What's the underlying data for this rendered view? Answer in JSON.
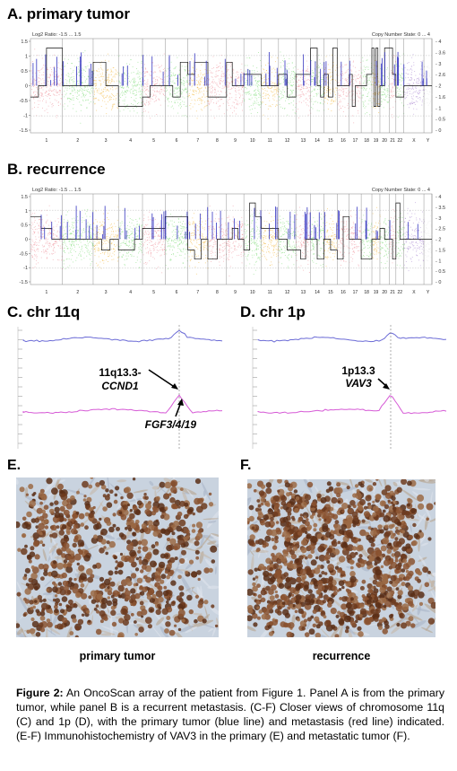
{
  "panelA": {
    "label": "A. primary tumor",
    "header_left": "Log2 Ratio: -1.5 ... 1.5",
    "header_right": "Copy Number State: 0 ... 4",
    "left_ticks": [
      "1.5",
      "1",
      "0.5",
      "0",
      "-0.5",
      "-1",
      "-1.5"
    ],
    "right_ticks": [
      "4",
      "3.6",
      "3",
      "2.6",
      "2",
      "1.6",
      "1",
      "0.5",
      "0"
    ],
    "chromosomes": [
      "1",
      "2",
      "3",
      "4",
      "5",
      "6",
      "7",
      "8",
      "9",
      "10",
      "11",
      "12",
      "13",
      "14",
      "15",
      "16",
      "17",
      "18",
      "19",
      "20",
      "21",
      "22",
      "X",
      "Y"
    ]
  },
  "panelB": {
    "label": "B. recurrence",
    "header_left": "Log2 Ratio: -1.5 ... 1.5",
    "header_right": "Copy Number State: 0 ... 4",
    "left_ticks": [
      "1.5",
      "1",
      "0.5",
      "0",
      "-0.5",
      "-1",
      "-1.5"
    ],
    "right_ticks": [
      "4",
      "3.5",
      "3",
      "2.5",
      "2",
      "1.5",
      "1",
      "0.5",
      "0"
    ],
    "chromosomes": [
      "1",
      "2",
      "3",
      "4",
      "5",
      "6",
      "7",
      "8",
      "9",
      "10",
      "11",
      "12",
      "13",
      "14",
      "15",
      "16",
      "17",
      "18",
      "19",
      "20",
      "21",
      "22",
      "X",
      "Y"
    ]
  },
  "panelC": {
    "label": "C. chr 11q",
    "annot_locus": "11q13.3-",
    "annot_gene": "CCND1",
    "annot_fgf": "FGF3/4/19"
  },
  "panelD": {
    "label": "D. chr 1p",
    "annot_locus": "1p13.3",
    "annot_gene": "VAV3"
  },
  "panelE": {
    "label": "E.",
    "caption": "primary tumor"
  },
  "panelF": {
    "label": "F.",
    "caption": "recurrence"
  },
  "figure_caption": {
    "label": "Figure 2:",
    "text": " An OncoScan array of the patient from Figure 1. Panel A is from the primary tumor, while panel B is a recurrent metastasis. (C-F) Closer views of chromosome 11q (C) and 1p (D), with the primary tumor (blue line) and metastasis (red line) indicated. (E-F) Immunohistochemistry of VAV3 in the primary (E) and metastatic tumor (F)."
  },
  "colors": {
    "chr_pink": "#f2a0a8",
    "chr_green": "#8fe08a",
    "chr_orange": "#f4c25a",
    "chr_purple": "#b79ad8",
    "trace_blue": "#2b2bbd",
    "zoom_blue": "#6b6bd6",
    "zoom_magenta": "#d65ad6",
    "ihc_brown": "#7a4a2c",
    "ihc_blue": "#c9d3df"
  }
}
